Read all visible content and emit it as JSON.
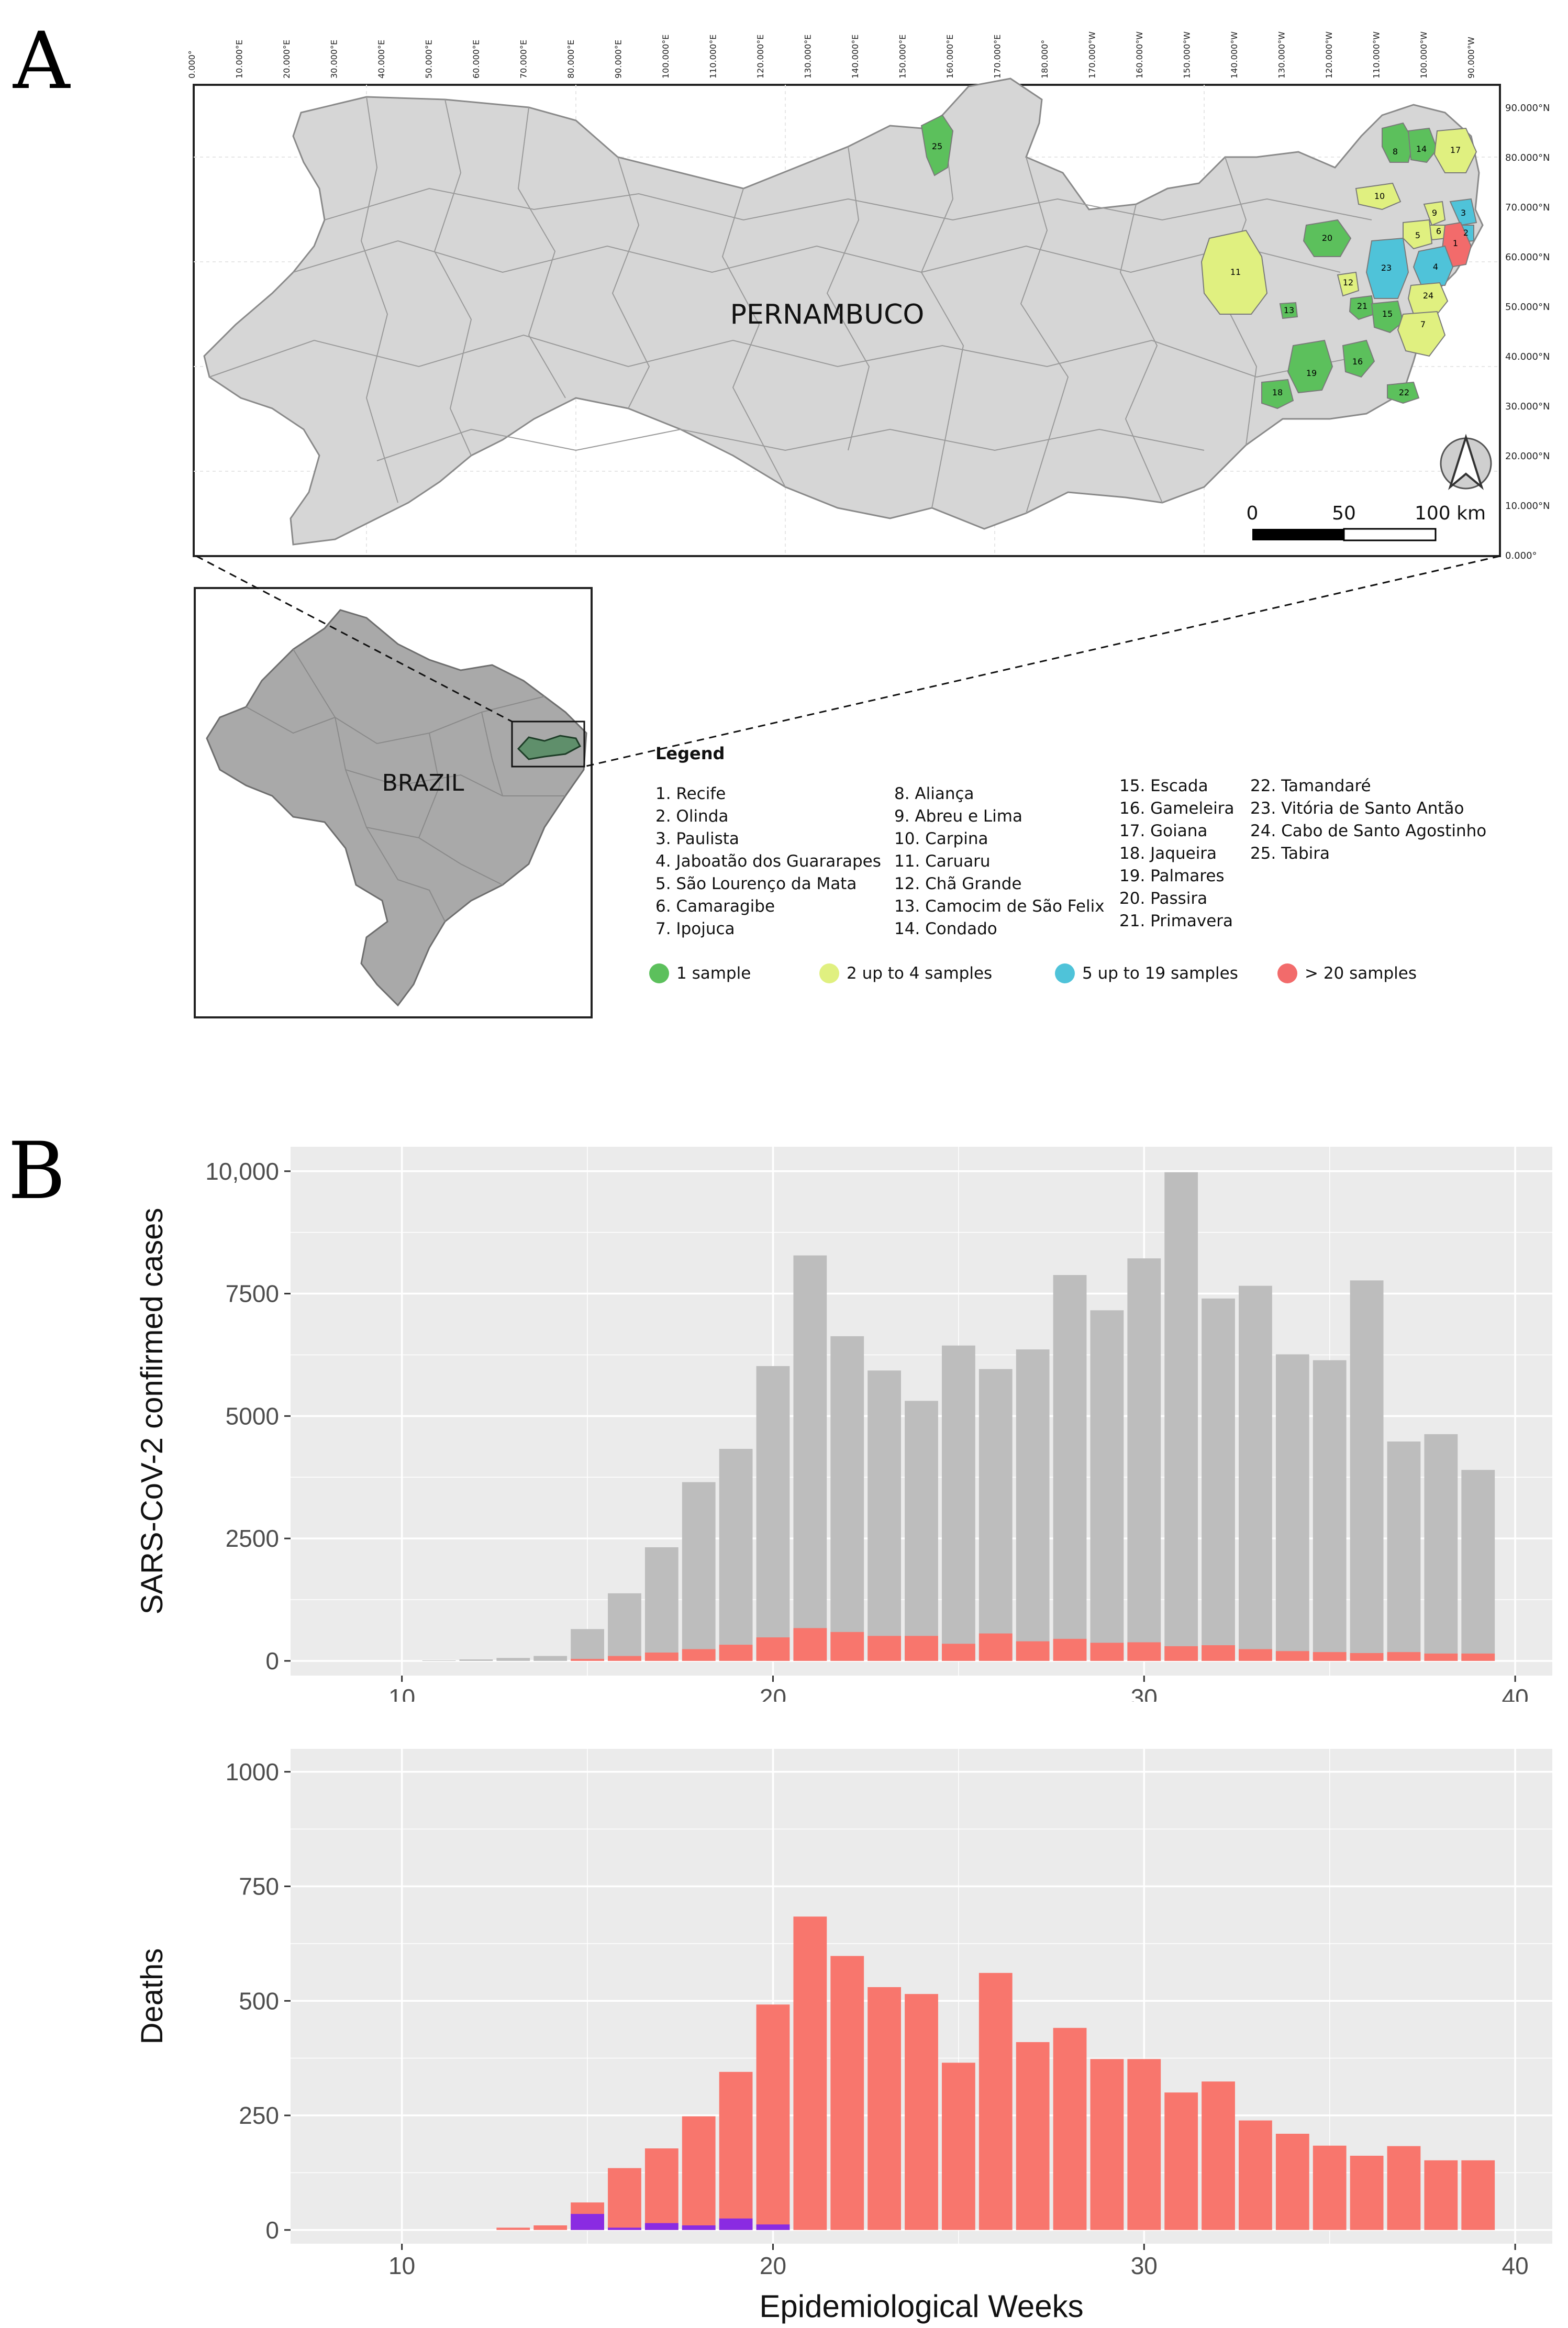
{
  "panels": {
    "a": "A",
    "b": "B"
  },
  "map": {
    "state_label": "PERNAMBUCO",
    "country_label": "BRAZIL",
    "top_ticks": [
      "0.000°",
      "10.000°E",
      "20.000°E",
      "30.000°E",
      "40.000°E",
      "50.000°E",
      "60.000°E",
      "70.000°E",
      "80.000°E",
      "90.000°E",
      "100.000°E",
      "110.000°E",
      "120.000°E",
      "130.000°E",
      "140.000°E",
      "150.000°E",
      "160.000°E",
      "170.000°E",
      "180.000°",
      "170.000°W",
      "160.000°W",
      "150.000°W",
      "140.000°W",
      "130.000°W",
      "120.000°W",
      "110.000°W",
      "100.000°W",
      "90.000°W"
    ],
    "right_ticks": [
      "90.000°N",
      "80.000°N",
      "70.000°N",
      "60.000°N",
      "50.000°N",
      "40.000°N",
      "30.000°N",
      "20.000°N",
      "10.000°N",
      "0.000°"
    ],
    "scale": {
      "zero": "0",
      "mid": "50",
      "end": "100 km"
    },
    "municipality_colors": {
      "1": "#f26b6b",
      "2": "#4fc3d9",
      "3": "#4fc3d9",
      "4": "#4fc3d9",
      "5": "#e0f080",
      "6": "#e0f080",
      "7": "#e0f080",
      "8": "#5cc05c",
      "9": "#e0f080",
      "10": "#e0f080",
      "11": "#e0f080",
      "12": "#e0f080",
      "13": "#5cc05c",
      "14": "#5cc05c",
      "15": "#5cc05c",
      "16": "#5cc05c",
      "17": "#e0f080",
      "18": "#5cc05c",
      "19": "#5cc05c",
      "20": "#5cc05c",
      "21": "#5cc05c",
      "22": "#5cc05c",
      "23": "#4fc3d9",
      "24": "#e0f080",
      "25": "#5cc05c"
    }
  },
  "legend": {
    "title": "Legend",
    "col1": [
      "1. Recife",
      "2. Olinda",
      "3. Paulista",
      "4. Jaboatão dos Guararapes",
      "5. São Lourenço da Mata",
      "6. Camaragibe",
      "7. Ipojuca"
    ],
    "col2": [
      "8. Aliança",
      "9. Abreu e Lima",
      "10. Carpina",
      "11. Caruaru",
      "12. Chã Grande",
      "13. Camocim de São Felix",
      "14. Condado"
    ],
    "col3": [
      "15. Escada",
      "16. Gameleira",
      "17. Goiana",
      "18. Jaqueira",
      "19. Palmares",
      "20. Passira",
      "21. Primavera"
    ],
    "col4": [
      "22. Tamandaré",
      "23. Vitória de Santo Antão",
      "24. Cabo de Santo Agostinho",
      "25. Tabira"
    ],
    "keys": [
      {
        "label": "1 sample",
        "color": "#5cc05c"
      },
      {
        "label": "2 up to 4 samples",
        "color": "#e0f080"
      },
      {
        "label": "5 up to 19 samples",
        "color": "#4fc3d9"
      },
      {
        "label": "> 20 samples",
        "color": "#f26b6b"
      }
    ]
  },
  "colors": {
    "panel_bg": "#ebebeb",
    "grid": "#ffffff",
    "cases_bar": "#bdbdbd",
    "deaths_bar": "#f8766d",
    "purple_bar": "#8a2be2"
  },
  "chart_data": [
    {
      "type": "bar",
      "ylabel": "SARS-CoV-2 confirmed cases",
      "xlabel": "",
      "xlim": [
        7,
        41
      ],
      "ylim": [
        -300,
        10500
      ],
      "xticks": [
        "10",
        "20",
        "30",
        "40"
      ],
      "yticks": [
        "0",
        "2500",
        "5000",
        "7500",
        "10,000"
      ],
      "x": [
        11,
        12,
        13,
        14,
        15,
        16,
        17,
        18,
        19,
        20,
        21,
        22,
        23,
        24,
        25,
        26,
        27,
        28,
        29,
        30,
        31,
        32,
        33,
        34,
        35,
        36,
        37,
        38,
        39
      ],
      "series": [
        {
          "values": [
            10,
            30,
            60,
            100,
            650,
            1380,
            2320,
            3650,
            4330,
            6020,
            8280,
            6630,
            5930,
            5310,
            6440,
            5960,
            6360,
            7880,
            7160,
            8220,
            9980,
            7400,
            7660,
            6260,
            6140,
            7770,
            4480,
            4630,
            3900
          ]
        },
        {
          "values": [
            0,
            0,
            0,
            0,
            40,
            100,
            170,
            240,
            330,
            480,
            670,
            590,
            510,
            510,
            350,
            560,
            400,
            450,
            370,
            380,
            300,
            320,
            240,
            200,
            180,
            160,
            180,
            150,
            150
          ]
        }
      ]
    },
    {
      "type": "bar",
      "ylabel": "Deaths",
      "xlabel": "Epidemiological Weeks",
      "xlim": [
        7,
        41
      ],
      "ylim": [
        -30,
        1050
      ],
      "xticks": [
        "10",
        "20",
        "30",
        "40"
      ],
      "yticks": [
        "0",
        "250",
        "500",
        "750",
        "1000"
      ],
      "x": [
        11,
        12,
        13,
        14,
        15,
        16,
        17,
        18,
        19,
        20,
        21,
        22,
        23,
        24,
        25,
        26,
        27,
        28,
        29,
        30,
        31,
        32,
        33,
        34,
        35,
        36,
        37,
        38,
        39
      ],
      "series": [
        {
          "values": [
            0,
            0,
            5,
            10,
            60,
            135,
            178,
            248,
            345,
            492,
            684,
            598,
            530,
            515,
            365,
            561,
            410,
            441,
            373,
            373,
            300,
            324,
            239,
            210,
            184,
            162,
            183,
            152,
            152
          ]
        },
        {
          "values": [
            0,
            0,
            0,
            0,
            35,
            5,
            15,
            10,
            25,
            12,
            0,
            0,
            0,
            0,
            0,
            0,
            0,
            0,
            0,
            0,
            0,
            0,
            0,
            0,
            0,
            0,
            0,
            0,
            0
          ]
        }
      ]
    }
  ]
}
